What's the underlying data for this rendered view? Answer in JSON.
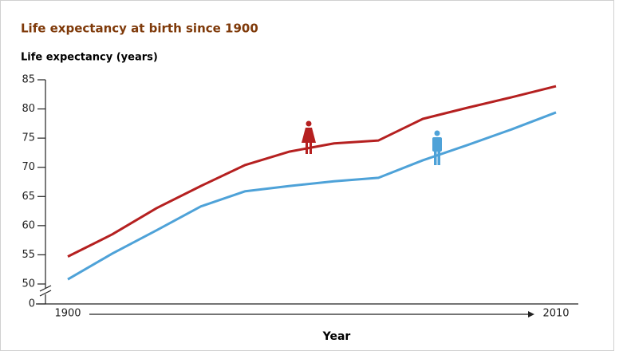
{
  "chart_data": {
    "type": "line",
    "title": "Life expectancy at birth since 1900",
    "y_label": "Life expectancy (years)",
    "x_label": "Year",
    "x": [
      1900,
      1910,
      1920,
      1930,
      1940,
      1950,
      1960,
      1970,
      1980,
      1990,
      2000,
      2010
    ],
    "xlim": [
      1900,
      2010
    ],
    "xticks": [
      1900,
      2010
    ],
    "ylim": [
      50,
      85
    ],
    "yticks": [
      50,
      55,
      60,
      65,
      70,
      75,
      80,
      85
    ],
    "y_origin_tick": 0,
    "series": [
      {
        "color": "#b52020",
        "values": [
          54.7,
          58.5,
          63.0,
          66.8,
          70.4,
          72.7,
          74.1,
          74.6,
          78.3,
          80.2,
          82.0,
          83.9
        ]
      },
      {
        "color": "#4ea2d8",
        "values": [
          50.8,
          55.2,
          59.2,
          63.3,
          65.9,
          66.8,
          67.6,
          68.2,
          71.2,
          73.8,
          76.5,
          79.4
        ]
      }
    ]
  }
}
